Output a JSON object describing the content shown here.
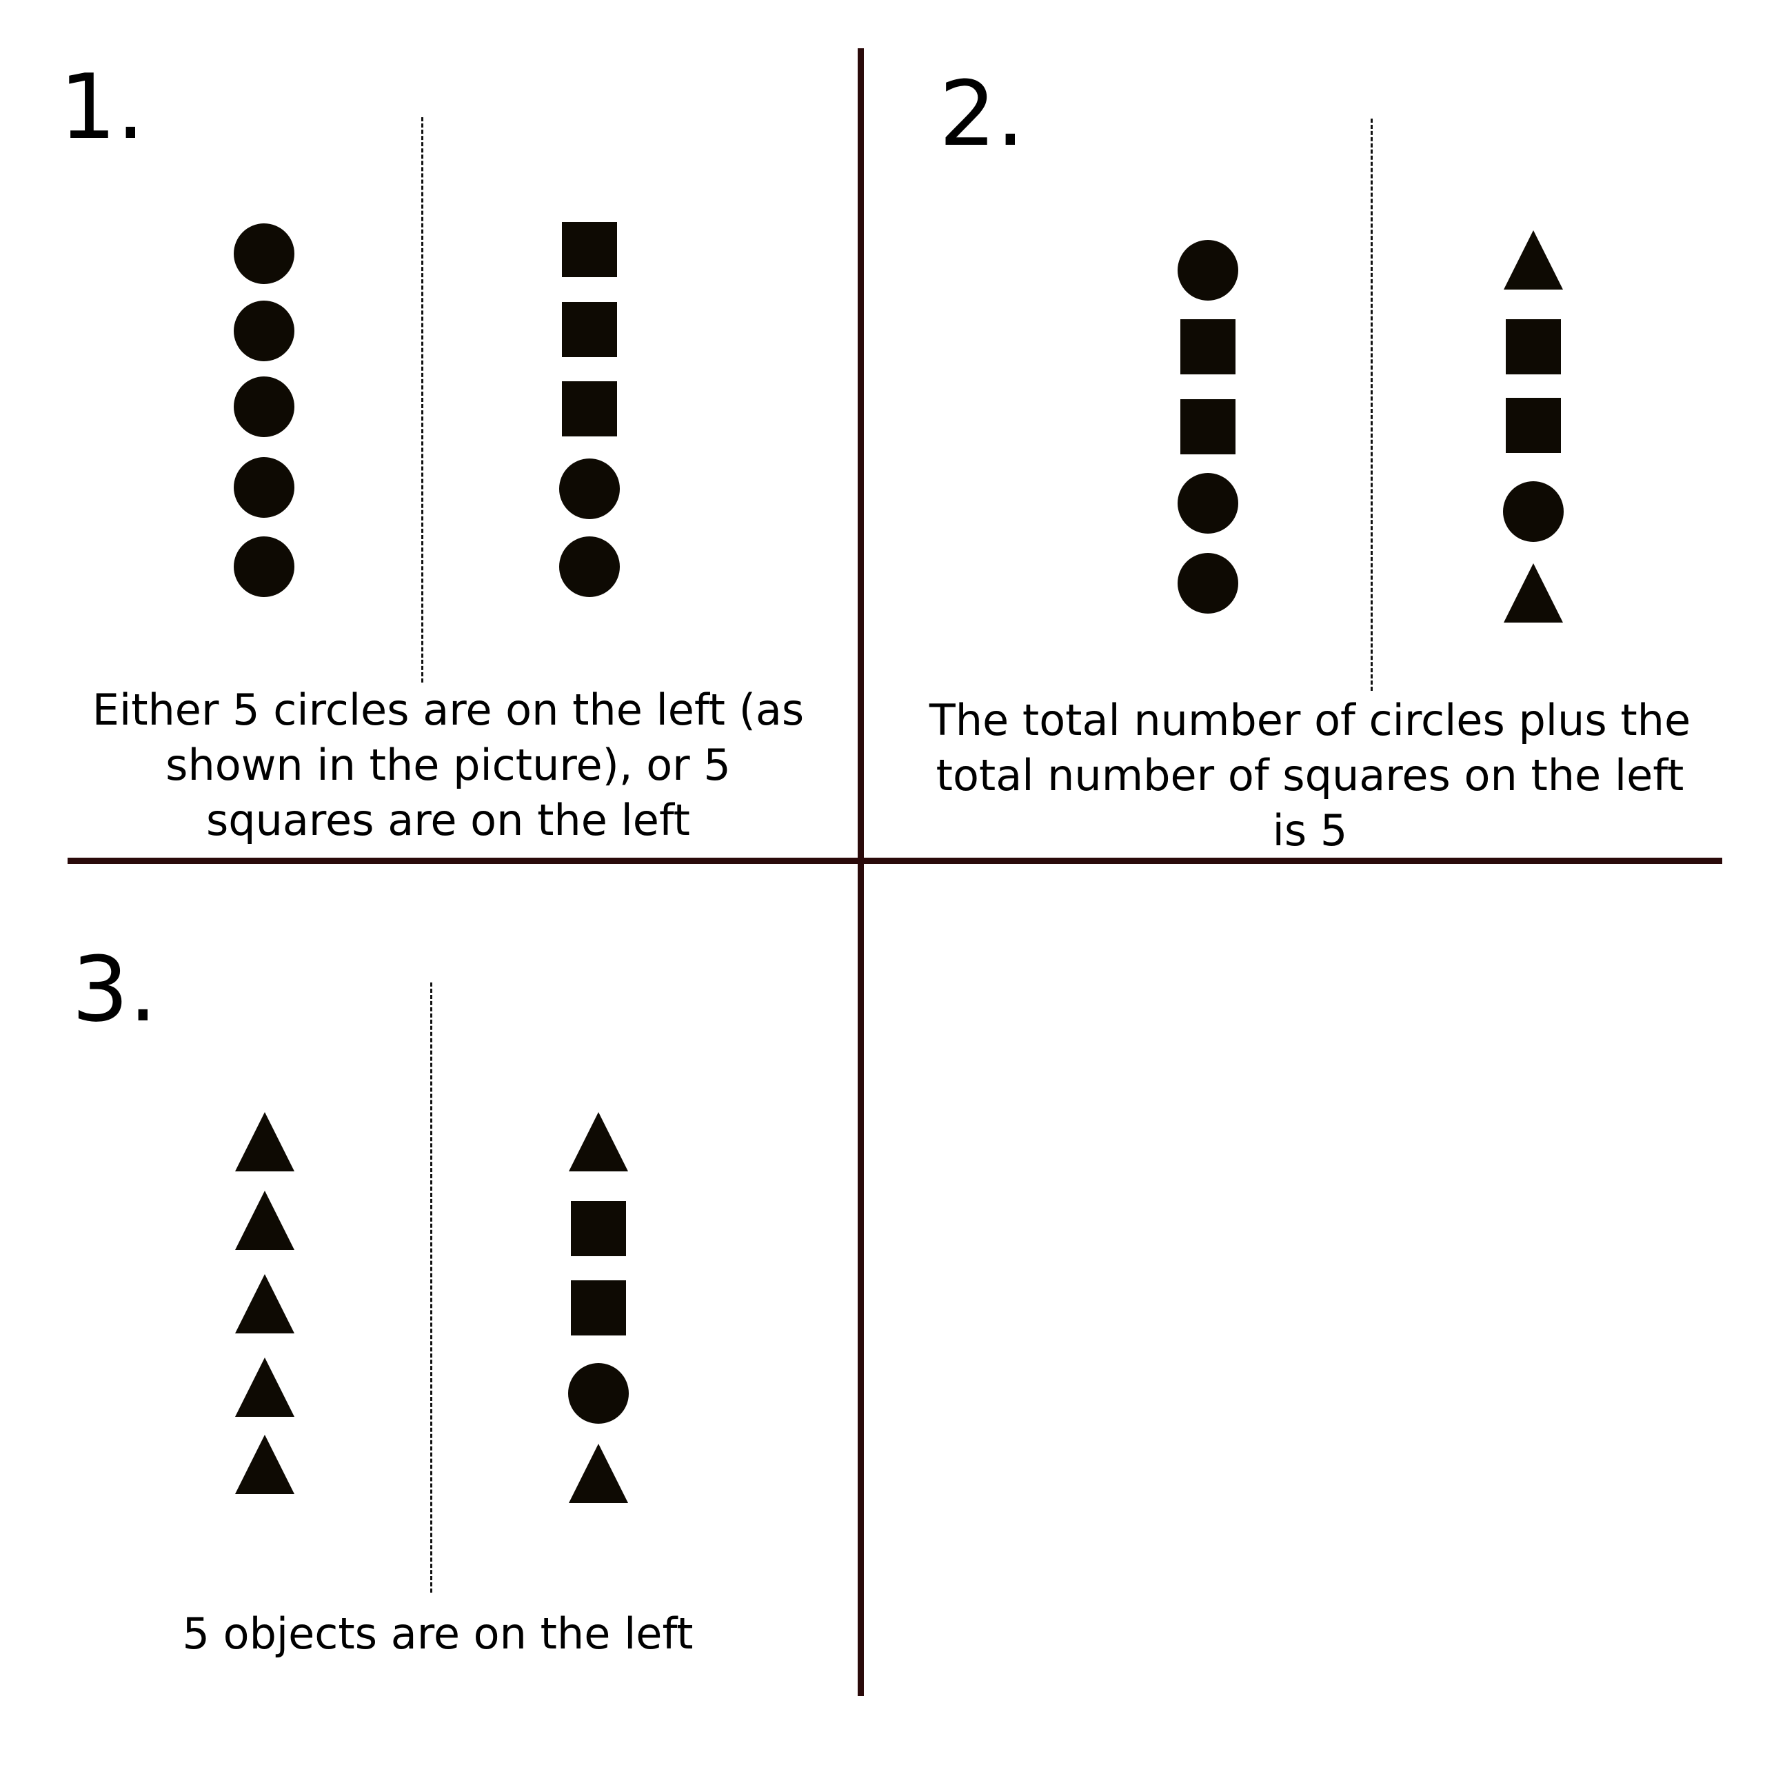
{
  "colors": {
    "divider": "#2a0a0a",
    "shape_fill": "#0e0a03",
    "background": "#ffffff"
  },
  "panels": [
    {
      "number": "1.",
      "caption_lines": [
        "Either 5 circles are on the left (as",
        "shown in the picture), or 5",
        "squares are on the left"
      ],
      "left_column": [
        "circle",
        "circle",
        "circle",
        "circle",
        "circle"
      ],
      "right_column": [
        "square",
        "square",
        "square",
        "circle",
        "circle"
      ]
    },
    {
      "number": "2.",
      "caption_lines": [
        "The total number of circles plus the",
        "total number of squares on the left",
        "is 5"
      ],
      "left_column": [
        "circle",
        "square",
        "square",
        "circle",
        "circle"
      ],
      "right_column": [
        "triangle",
        "square",
        "square",
        "circle",
        "triangle"
      ]
    },
    {
      "number": "3.",
      "caption_lines": [
        "5 objects are on the left"
      ],
      "left_column": [
        "triangle",
        "triangle",
        "triangle",
        "triangle",
        "triangle"
      ],
      "right_column": [
        "triangle",
        "square",
        "square",
        "circle",
        "triangle"
      ]
    }
  ]
}
